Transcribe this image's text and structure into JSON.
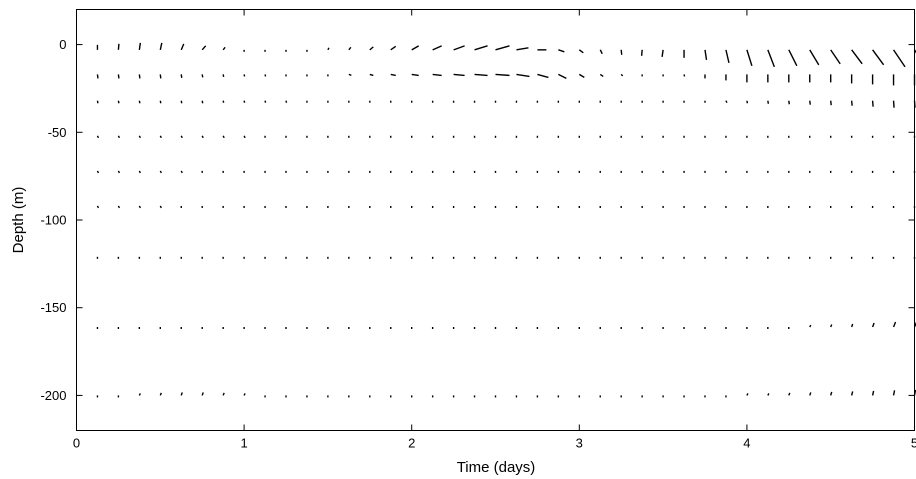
{
  "chart_data": {
    "type": "quiver",
    "title": "",
    "xlabel": "Time (days)",
    "ylabel": "Depth (m)",
    "xlim": [
      0,
      5
    ],
    "ylim": [
      -220,
      20
    ],
    "xticks": [
      0,
      1,
      2,
      3,
      4,
      5
    ],
    "yticks": [
      0,
      -50,
      -100,
      -150,
      -200
    ],
    "grid": false,
    "legend": "none",
    "arrow_color": "#000000",
    "depths": [
      -3,
      -17,
      -32,
      -52,
      -72,
      -92,
      -121,
      -161,
      -200
    ],
    "times": [
      0.125,
      0.25,
      0.375,
      0.5,
      0.625,
      0.75,
      0.875,
      1.0,
      1.125,
      1.25,
      1.375,
      1.5,
      1.625,
      1.75,
      1.875,
      2.0,
      2.125,
      2.25,
      2.375,
      2.5,
      2.625,
      2.75,
      2.875,
      3.0,
      3.125,
      3.25,
      3.375,
      3.5,
      3.625,
      3.75,
      3.875,
      4.0,
      4.125,
      4.25,
      4.375,
      4.5,
      4.625,
      4.75,
      4.875,
      5.0
    ],
    "vectors": [
      {
        "depth": -3,
        "u": [
          0.0,
          0.1,
          0.2,
          0.3,
          0.5,
          0.7,
          0.4,
          0.1,
          0.0,
          0.0,
          0.1,
          0.2,
          0.4,
          0.7,
          1.0,
          1.4,
          1.8,
          2.2,
          2.6,
          2.8,
          2.4,
          1.8,
          1.2,
          0.8,
          0.4,
          0.1,
          -0.1,
          -0.2,
          0.0,
          0.3,
          0.6,
          1.0,
          1.3,
          1.6,
          1.8,
          1.9,
          2.1,
          2.2,
          2.3,
          2.3
        ],
        "v": [
          1.0,
          1.2,
          1.4,
          1.4,
          1.2,
          0.8,
          0.5,
          0.3,
          0.2,
          0.2,
          0.3,
          0.4,
          0.5,
          0.6,
          0.7,
          0.8,
          0.8,
          0.8,
          0.8,
          0.8,
          0.4,
          0.0,
          -0.4,
          -0.6,
          -0.8,
          -1.0,
          -1.2,
          -1.4,
          -1.6,
          -2.0,
          -2.6,
          -3.2,
          -3.4,
          -3.2,
          -3.0,
          -2.8,
          -2.8,
          -3.0,
          -3.4,
          -3.6
        ]
      },
      {
        "depth": -17,
        "u": [
          0.1,
          0.1,
          0.1,
          0.1,
          0.1,
          0.1,
          0.1,
          0.1,
          0.1,
          0.2,
          0.2,
          0.3,
          0.5,
          0.7,
          1.0,
          1.4,
          1.8,
          2.2,
          2.6,
          2.8,
          2.6,
          2.2,
          1.6,
          1.0,
          0.6,
          0.3,
          0.2,
          0.1,
          0.1,
          0.0,
          0.0,
          0.0,
          0.0,
          0.0,
          0.0,
          0.0,
          0.0,
          0.0,
          0.0,
          0.0
        ],
        "v": [
          -0.8,
          -0.8,
          -0.8,
          -0.8,
          -0.7,
          -0.6,
          -0.5,
          -0.4,
          -0.4,
          -0.3,
          -0.3,
          -0.2,
          -0.2,
          -0.2,
          -0.2,
          -0.2,
          -0.2,
          -0.2,
          -0.2,
          -0.2,
          -0.4,
          -0.6,
          -0.8,
          -0.6,
          -0.4,
          -0.3,
          -0.3,
          -0.3,
          -0.4,
          -0.8,
          -1.2,
          -1.6,
          -1.6,
          -1.6,
          -1.6,
          -1.6,
          -1.8,
          -2.0,
          -2.2,
          -2.2
        ]
      },
      {
        "depth": -32,
        "u": [
          0.1,
          0.1,
          0.1,
          0.1,
          0.1,
          0.1,
          0.1,
          0.1,
          0.1,
          0.1,
          0.1,
          0.1,
          0.1,
          0.1,
          0.1,
          0.1,
          0.1,
          0.2,
          0.2,
          0.2,
          0.2,
          0.2,
          0.2,
          0.2,
          0.2,
          0.3,
          0.3,
          0.3,
          0.3,
          0.2,
          0.2,
          0.1,
          0.1,
          0.1,
          0.1,
          0.1,
          0.1,
          0.1,
          0.1,
          0.1
        ],
        "v": [
          -0.5,
          -0.5,
          -0.5,
          -0.5,
          -0.5,
          -0.5,
          -0.4,
          -0.4,
          -0.4,
          -0.4,
          -0.3,
          -0.3,
          -0.3,
          -0.3,
          -0.2,
          -0.2,
          -0.2,
          -0.2,
          -0.2,
          -0.2,
          -0.1,
          -0.1,
          -0.1,
          -0.1,
          -0.1,
          -0.1,
          -0.1,
          -0.2,
          -0.2,
          -0.3,
          -0.4,
          -0.5,
          -0.6,
          -0.7,
          -0.8,
          -0.9,
          -1.0,
          -1.2,
          -1.4,
          -1.4
        ]
      },
      {
        "depth": -52,
        "u": [
          0.2,
          0.2,
          0.2,
          0.2,
          0.2,
          0.2,
          0.2,
          0.2,
          0.2,
          0.2,
          0.2,
          0.2,
          0.2,
          0.2,
          0.2,
          0.2,
          0.2,
          0.2,
          0.2,
          0.2,
          0.2,
          0.2,
          0.2,
          0.2,
          0.2,
          0.2,
          0.2,
          0.2,
          0.2,
          0.2,
          0.2,
          0.2,
          0.2,
          0.2,
          0.2,
          0.2,
          0.2,
          0.2,
          0.2,
          0.2
        ],
        "v": [
          -0.4,
          -0.4,
          -0.4,
          -0.4,
          -0.4,
          -0.4,
          -0.4,
          -0.4,
          -0.3,
          -0.3,
          -0.3,
          -0.3,
          -0.2,
          -0.2,
          -0.2,
          -0.2,
          -0.2,
          -0.2,
          -0.2,
          -0.2,
          -0.2,
          -0.2,
          -0.2,
          -0.2,
          -0.2,
          -0.2,
          -0.2,
          -0.2,
          -0.2,
          -0.2,
          -0.2,
          -0.2,
          -0.2,
          -0.2,
          -0.2,
          -0.2,
          -0.2,
          -0.2,
          -0.2,
          -0.2
        ]
      },
      {
        "depth": -72,
        "u": [
          0.2,
          0.2,
          0.2,
          0.2,
          0.2,
          0.2,
          0.2,
          0.2,
          0.2,
          0.2,
          0.2,
          0.2,
          0.2,
          0.2,
          0.2,
          0.2,
          0.2,
          0.2,
          0.2,
          0.2,
          0.2,
          0.2,
          0.2,
          0.2,
          0.2,
          0.2,
          0.2,
          0.2,
          0.2,
          0.2,
          0.2,
          0.2,
          0.2,
          0.2,
          0.2,
          0.2,
          0.2,
          0.2,
          0.2,
          0.2
        ],
        "v": [
          -0.4,
          -0.4,
          -0.4,
          -0.4,
          -0.4,
          -0.3,
          -0.3,
          -0.3,
          -0.3,
          -0.3,
          -0.3,
          -0.2,
          -0.2,
          -0.2,
          -0.2,
          -0.2,
          -0.2,
          -0.2,
          -0.2,
          -0.2,
          -0.2,
          -0.2,
          -0.2,
          -0.2,
          -0.2,
          -0.2,
          -0.2,
          -0.2,
          -0.2,
          -0.2,
          -0.2,
          -0.2,
          -0.2,
          -0.2,
          -0.2,
          -0.2,
          -0.2,
          -0.2,
          -0.2,
          -0.2
        ]
      },
      {
        "depth": -92,
        "u": [
          0.2,
          0.2,
          0.2,
          0.2,
          0.2,
          0.2,
          0.2,
          0.2,
          0.2,
          0.2,
          0.2,
          0.2,
          0.2,
          0.2,
          0.2,
          0.2,
          0.2,
          0.2,
          0.2,
          0.2,
          0.2,
          0.2,
          0.2,
          0.2,
          0.2,
          0.2,
          0.2,
          0.2,
          0.2,
          0.2,
          0.2,
          0.2,
          0.2,
          0.2,
          0.2,
          0.2,
          0.2,
          0.2,
          0.2,
          0.2
        ],
        "v": [
          -0.4,
          -0.4,
          -0.4,
          -0.4,
          -0.3,
          -0.3,
          -0.3,
          -0.3,
          -0.3,
          -0.3,
          -0.2,
          -0.2,
          -0.2,
          -0.2,
          -0.2,
          -0.2,
          -0.2,
          -0.2,
          -0.2,
          -0.2,
          -0.2,
          -0.2,
          -0.2,
          -0.2,
          -0.2,
          -0.2,
          -0.2,
          -0.2,
          -0.2,
          -0.2,
          -0.2,
          -0.2,
          -0.2,
          -0.2,
          -0.2,
          -0.2,
          -0.2,
          -0.2,
          -0.2,
          -0.2
        ]
      },
      {
        "depth": -121,
        "u": [
          0.2,
          0.2,
          0.2,
          0.2,
          0.2,
          0.2,
          0.2,
          0.2,
          0.2,
          0.2,
          0.2,
          0.2,
          0.2,
          0.2,
          0.2,
          0.2,
          0.2,
          0.2,
          0.2,
          0.2,
          0.2,
          0.2,
          0.2,
          0.2,
          0.2,
          0.2,
          0.2,
          0.2,
          0.2,
          0.2,
          0.2,
          0.2,
          0.2,
          0.2,
          0.2,
          0.2,
          0.2,
          0.2,
          0.2,
          0.2
        ],
        "v": [
          -0.3,
          -0.3,
          -0.3,
          -0.3,
          -0.3,
          -0.3,
          -0.2,
          -0.2,
          -0.2,
          -0.2,
          -0.2,
          -0.2,
          -0.2,
          -0.2,
          -0.2,
          -0.2,
          -0.2,
          -0.2,
          -0.2,
          -0.2,
          -0.2,
          -0.2,
          -0.2,
          -0.2,
          -0.2,
          -0.2,
          -0.2,
          -0.2,
          -0.2,
          -0.2,
          -0.2,
          -0.2,
          -0.2,
          -0.2,
          -0.2,
          -0.2,
          -0.2,
          -0.2,
          -0.2,
          -0.2
        ]
      },
      {
        "depth": -161,
        "u": [
          0.2,
          0.2,
          0.2,
          0.2,
          0.2,
          0.2,
          0.2,
          0.2,
          0.2,
          0.2,
          0.2,
          0.2,
          0.2,
          0.2,
          0.2,
          0.2,
          0.2,
          0.2,
          0.2,
          0.2,
          0.2,
          0.2,
          0.2,
          0.2,
          0.2,
          0.2,
          0.2,
          0.2,
          0.2,
          0.2,
          0.2,
          0.2,
          0.2,
          0.2,
          0.2,
          0.2,
          0.2,
          0.3,
          0.4,
          0.5
        ],
        "v": [
          0.2,
          0.2,
          0.2,
          0.2,
          0.2,
          0.2,
          0.2,
          0.2,
          0.2,
          0.2,
          0.2,
          0.2,
          0.2,
          0.2,
          0.2,
          0.2,
          0.2,
          0.2,
          0.2,
          0.2,
          0.2,
          0.2,
          0.2,
          0.2,
          0.2,
          0.2,
          0.2,
          0.2,
          0.2,
          0.2,
          0.2,
          0.2,
          0.3,
          0.3,
          0.4,
          0.5,
          0.6,
          0.8,
          1.0,
          1.2
        ]
      },
      {
        "depth": -200,
        "u": [
          0.2,
          0.2,
          0.2,
          0.2,
          0.2,
          0.2,
          0.2,
          0.2,
          0.2,
          0.2,
          0.2,
          0.2,
          0.2,
          0.2,
          0.2,
          0.2,
          0.2,
          0.2,
          0.2,
          0.2,
          0.2,
          0.2,
          0.2,
          0.2,
          0.2,
          0.2,
          0.2,
          0.2,
          0.2,
          0.2,
          0.2,
          0.2,
          0.2,
          0.2,
          0.2,
          0.2,
          0.2,
          0.2,
          0.2,
          0.2
        ],
        "v": [
          0.3,
          0.3,
          0.4,
          0.5,
          0.6,
          0.6,
          0.5,
          0.4,
          0.3,
          0.3,
          0.3,
          0.3,
          0.3,
          0.3,
          0.3,
          0.3,
          0.3,
          0.3,
          0.3,
          0.3,
          0.3,
          0.3,
          0.3,
          0.3,
          0.3,
          0.3,
          0.3,
          0.3,
          0.3,
          0.3,
          0.3,
          0.4,
          0.4,
          0.5,
          0.6,
          0.7,
          0.8,
          0.9,
          1.0,
          1.1
        ]
      }
    ]
  }
}
